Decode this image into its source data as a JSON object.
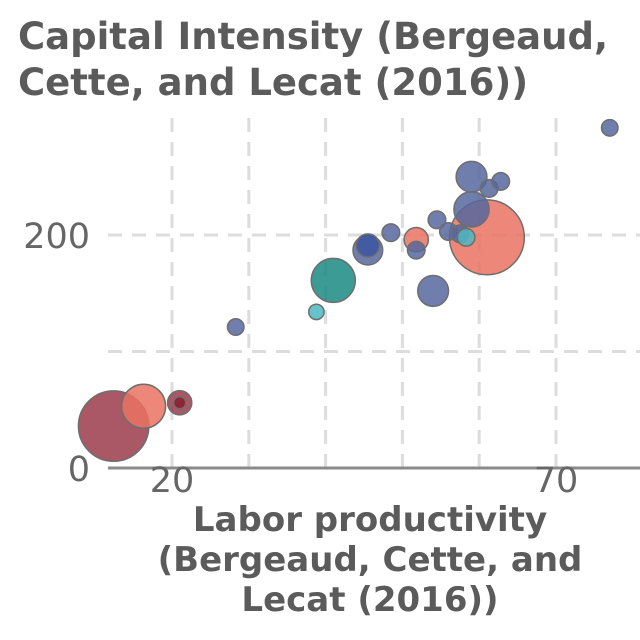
{
  "chart_data": {
    "type": "scatter",
    "title": "Capital Intensity (Bergeaud, Cette, and Lecat (2016))",
    "xlabel": "Labor productivity (Bergeaud, Cette, and Lecat (2016))",
    "ylabel": "",
    "x_ticks": [
      "20",
      "70"
    ],
    "x_tick_values": [
      20,
      70
    ],
    "y_ticks": [
      "0",
      "200"
    ],
    "y_tick_values": [
      0,
      200
    ],
    "xlim": [
      12,
      77
    ],
    "ylim": [
      0,
      310
    ],
    "grid": true,
    "point_size_unit": "relative bubble size",
    "points": [
      {
        "x": 12.4,
        "y": 36,
        "size": 3.2,
        "color": "#9b3b4a"
      },
      {
        "x": 16.3,
        "y": 53,
        "size": 2.0,
        "color": "#ea7262"
      },
      {
        "x": 21.0,
        "y": 56,
        "size": 1.1,
        "color": "#9b3b4a"
      },
      {
        "x": 21.0,
        "y": 56,
        "size": 0.55,
        "color": "#8b1b2c"
      },
      {
        "x": 28.3,
        "y": 121,
        "size": 0.75,
        "color": "#56679f"
      },
      {
        "x": 38.8,
        "y": 134,
        "size": 0.7,
        "color": "#4cb8c2"
      },
      {
        "x": 41.0,
        "y": 161,
        "size": 2.0,
        "color": "#1b8a84"
      },
      {
        "x": 45.5,
        "y": 187,
        "size": 1.35,
        "color": "#56679f"
      },
      {
        "x": 45.5,
        "y": 191,
        "size": 1.05,
        "color": "#3b55a0"
      },
      {
        "x": 48.5,
        "y": 202,
        "size": 0.8,
        "color": "#56679f"
      },
      {
        "x": 51.8,
        "y": 187,
        "size": 0.8,
        "color": "#56679f"
      },
      {
        "x": 51.8,
        "y": 196,
        "size": 1.1,
        "color": "#ea7262"
      },
      {
        "x": 54.0,
        "y": 152,
        "size": 1.4,
        "color": "#56679f"
      },
      {
        "x": 54.5,
        "y": 213,
        "size": 0.8,
        "color": "#56679f"
      },
      {
        "x": 56.0,
        "y": 203,
        "size": 0.8,
        "color": "#56679f"
      },
      {
        "x": 57.5,
        "y": 201,
        "size": 0.8,
        "color": "#56679f"
      },
      {
        "x": 58.3,
        "y": 198,
        "size": 0.8,
        "color": "#4cb8c2"
      },
      {
        "x": 59.0,
        "y": 250,
        "size": 1.4,
        "color": "#56679f"
      },
      {
        "x": 59.0,
        "y": 222,
        "size": 1.6,
        "color": "#56679f"
      },
      {
        "x": 61.0,
        "y": 198,
        "size": 3.4,
        "color": "#ea7262"
      },
      {
        "x": 61.3,
        "y": 240,
        "size": 0.8,
        "color": "#56679f"
      },
      {
        "x": 62.8,
        "y": 246,
        "size": 0.8,
        "color": "#56679f"
      },
      {
        "x": 77.0,
        "y": 292,
        "size": 0.75,
        "color": "#56679f"
      }
    ]
  }
}
